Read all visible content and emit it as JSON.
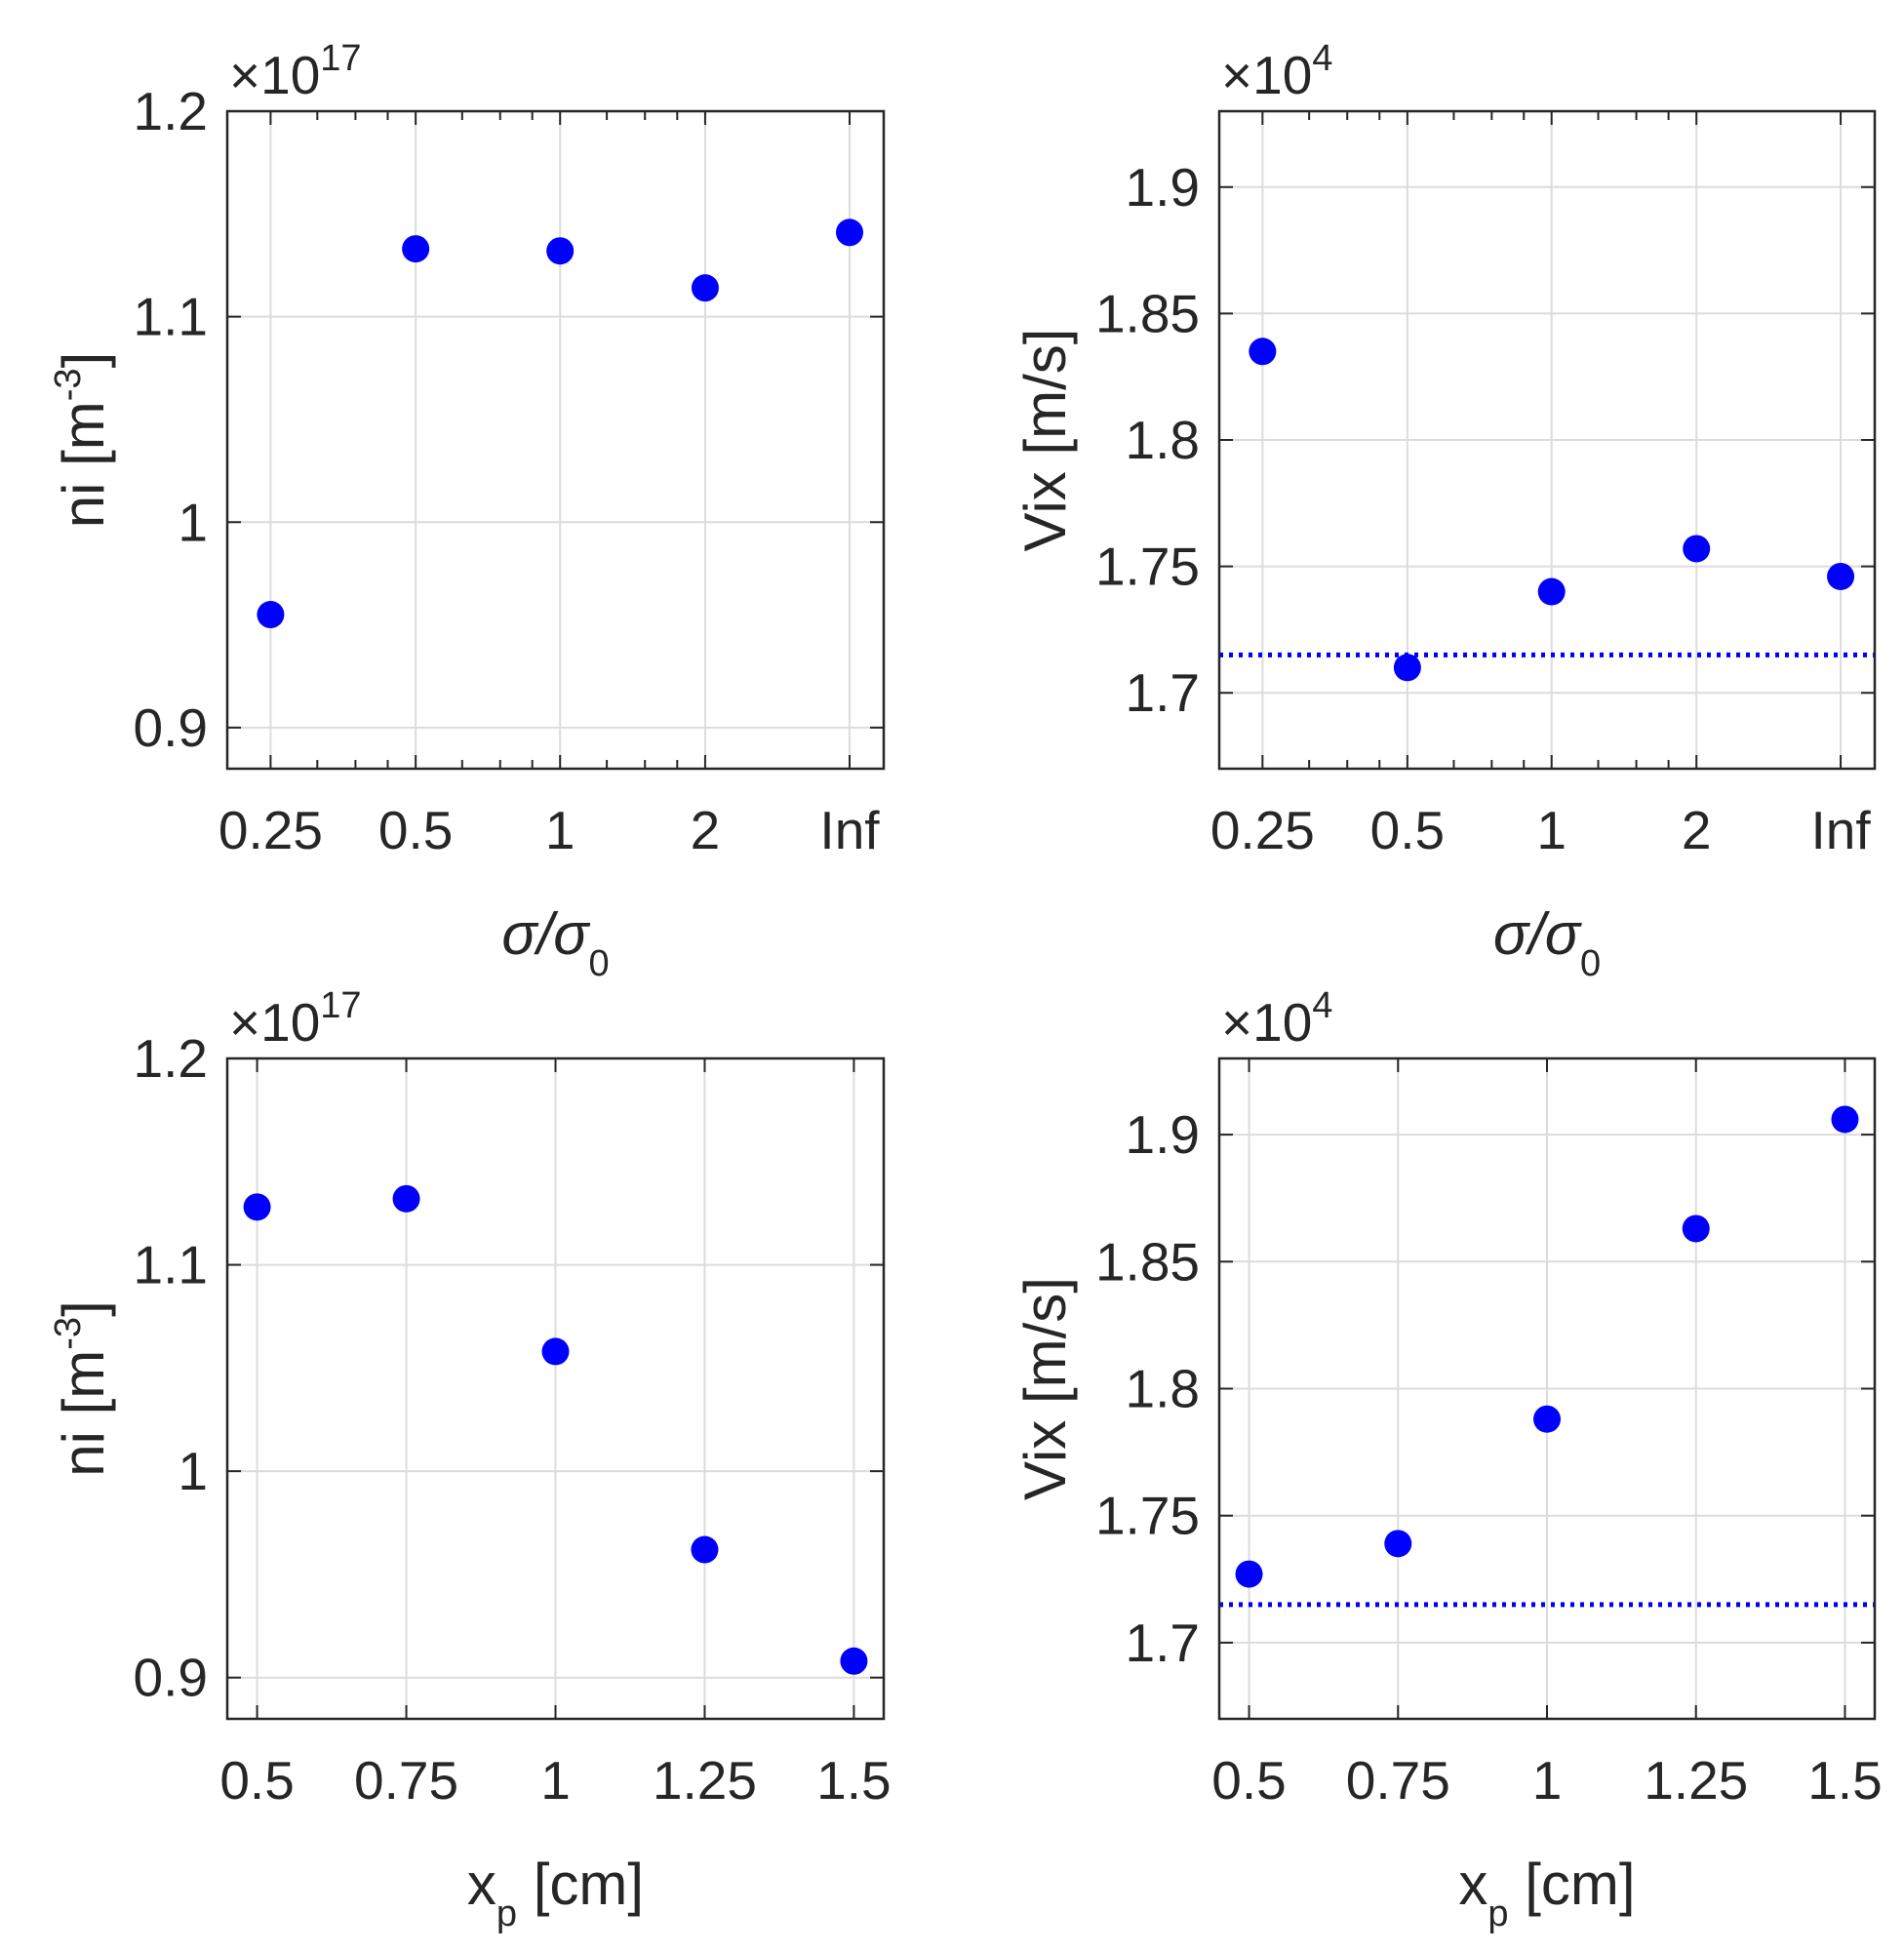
{
  "figure": {
    "marker_color": "#0000FF",
    "reference_line_color": "#0000FF",
    "grid_color": "#DCDCDC",
    "axes_color": "#262626"
  },
  "chart_data": [
    {
      "id": "ni-vs-sigma",
      "type": "scatter",
      "xscale": "category",
      "x_tick_labels": [
        "0.25",
        "0.5",
        "1",
        "2",
        "Inf"
      ],
      "xlabel": {
        "base": "σ/σ",
        "sub": "0"
      },
      "ylabel": {
        "base": "ni [m",
        "sup": "-3",
        "tail": "]"
      },
      "exponent": {
        "prefix": "×10",
        "power": "17"
      },
      "ylim": [
        0.88,
        1.2
      ],
      "y_ticks": [
        0.9,
        1,
        1.1,
        1.2
      ],
      "y_tick_labels": [
        "0.9",
        "1",
        "1.1",
        "1.2"
      ],
      "grid": true,
      "series": [
        {
          "name": "ni",
          "values": [
            0.955,
            1.133,
            1.132,
            1.114,
            1.141
          ]
        }
      ]
    },
    {
      "id": "vix-vs-sigma",
      "type": "scatter",
      "xscale": "category",
      "x_tick_labels": [
        "0.25",
        "0.5",
        "1",
        "2",
        "Inf"
      ],
      "xlabel": {
        "base": "σ/σ",
        "sub": "0"
      },
      "ylabel": {
        "base": "Vix [m/s]"
      },
      "exponent": {
        "prefix": "×10",
        "power": "4"
      },
      "ylim": [
        1.67,
        1.93
      ],
      "y_ticks": [
        1.7,
        1.75,
        1.8,
        1.85,
        1.9
      ],
      "y_tick_labels": [
        "1.7",
        "1.75",
        "1.8",
        "1.85",
        "1.9"
      ],
      "grid": true,
      "reference_line": {
        "y": 1.715,
        "style": "dotted"
      },
      "series": [
        {
          "name": "Vix",
          "values": [
            1.835,
            1.71,
            1.74,
            1.757,
            1.746
          ]
        }
      ]
    },
    {
      "id": "ni-vs-xp",
      "type": "scatter",
      "xscale": "linear",
      "x": [
        0.5,
        0.75,
        1,
        1.25,
        1.5
      ],
      "xlim": [
        0.45,
        1.55
      ],
      "x_ticks": [
        0.5,
        0.75,
        1,
        1.25,
        1.5
      ],
      "x_tick_labels": [
        "0.5",
        "0.75",
        "1",
        "1.25",
        "1.5"
      ],
      "xlabel": {
        "base": "x",
        "sub": "p",
        "tail": " [cm]"
      },
      "ylabel": {
        "base": "ni [m",
        "sup": "-3",
        "tail": "]"
      },
      "exponent": {
        "prefix": "×10",
        "power": "17"
      },
      "ylim": [
        0.88,
        1.2
      ],
      "y_ticks": [
        0.9,
        1,
        1.1,
        1.2
      ],
      "y_tick_labels": [
        "0.9",
        "1",
        "1.1",
        "1.2"
      ],
      "grid": true,
      "series": [
        {
          "name": "ni",
          "values": [
            1.128,
            1.132,
            1.058,
            0.962,
            0.908
          ]
        }
      ]
    },
    {
      "id": "vix-vs-xp",
      "type": "scatter",
      "xscale": "linear",
      "x": [
        0.5,
        0.75,
        1,
        1.25,
        1.5
      ],
      "xlim": [
        0.45,
        1.55
      ],
      "x_ticks": [
        0.5,
        0.75,
        1,
        1.25,
        1.5
      ],
      "x_tick_labels": [
        "0.5",
        "0.75",
        "1",
        "1.25",
        "1.5"
      ],
      "xlabel": {
        "base": "x",
        "sub": "p",
        "tail": " [cm]"
      },
      "ylabel": {
        "base": "Vix [m/s]"
      },
      "exponent": {
        "prefix": "×10",
        "power": "4"
      },
      "ylim": [
        1.67,
        1.93
      ],
      "y_ticks": [
        1.7,
        1.75,
        1.8,
        1.85,
        1.9
      ],
      "y_tick_labels": [
        "1.7",
        "1.75",
        "1.8",
        "1.85",
        "1.9"
      ],
      "grid": true,
      "reference_line": {
        "y": 1.715,
        "style": "dotted"
      },
      "series": [
        {
          "name": "Vix",
          "values": [
            1.727,
            1.739,
            1.788,
            1.863,
            1.906
          ]
        }
      ]
    }
  ]
}
